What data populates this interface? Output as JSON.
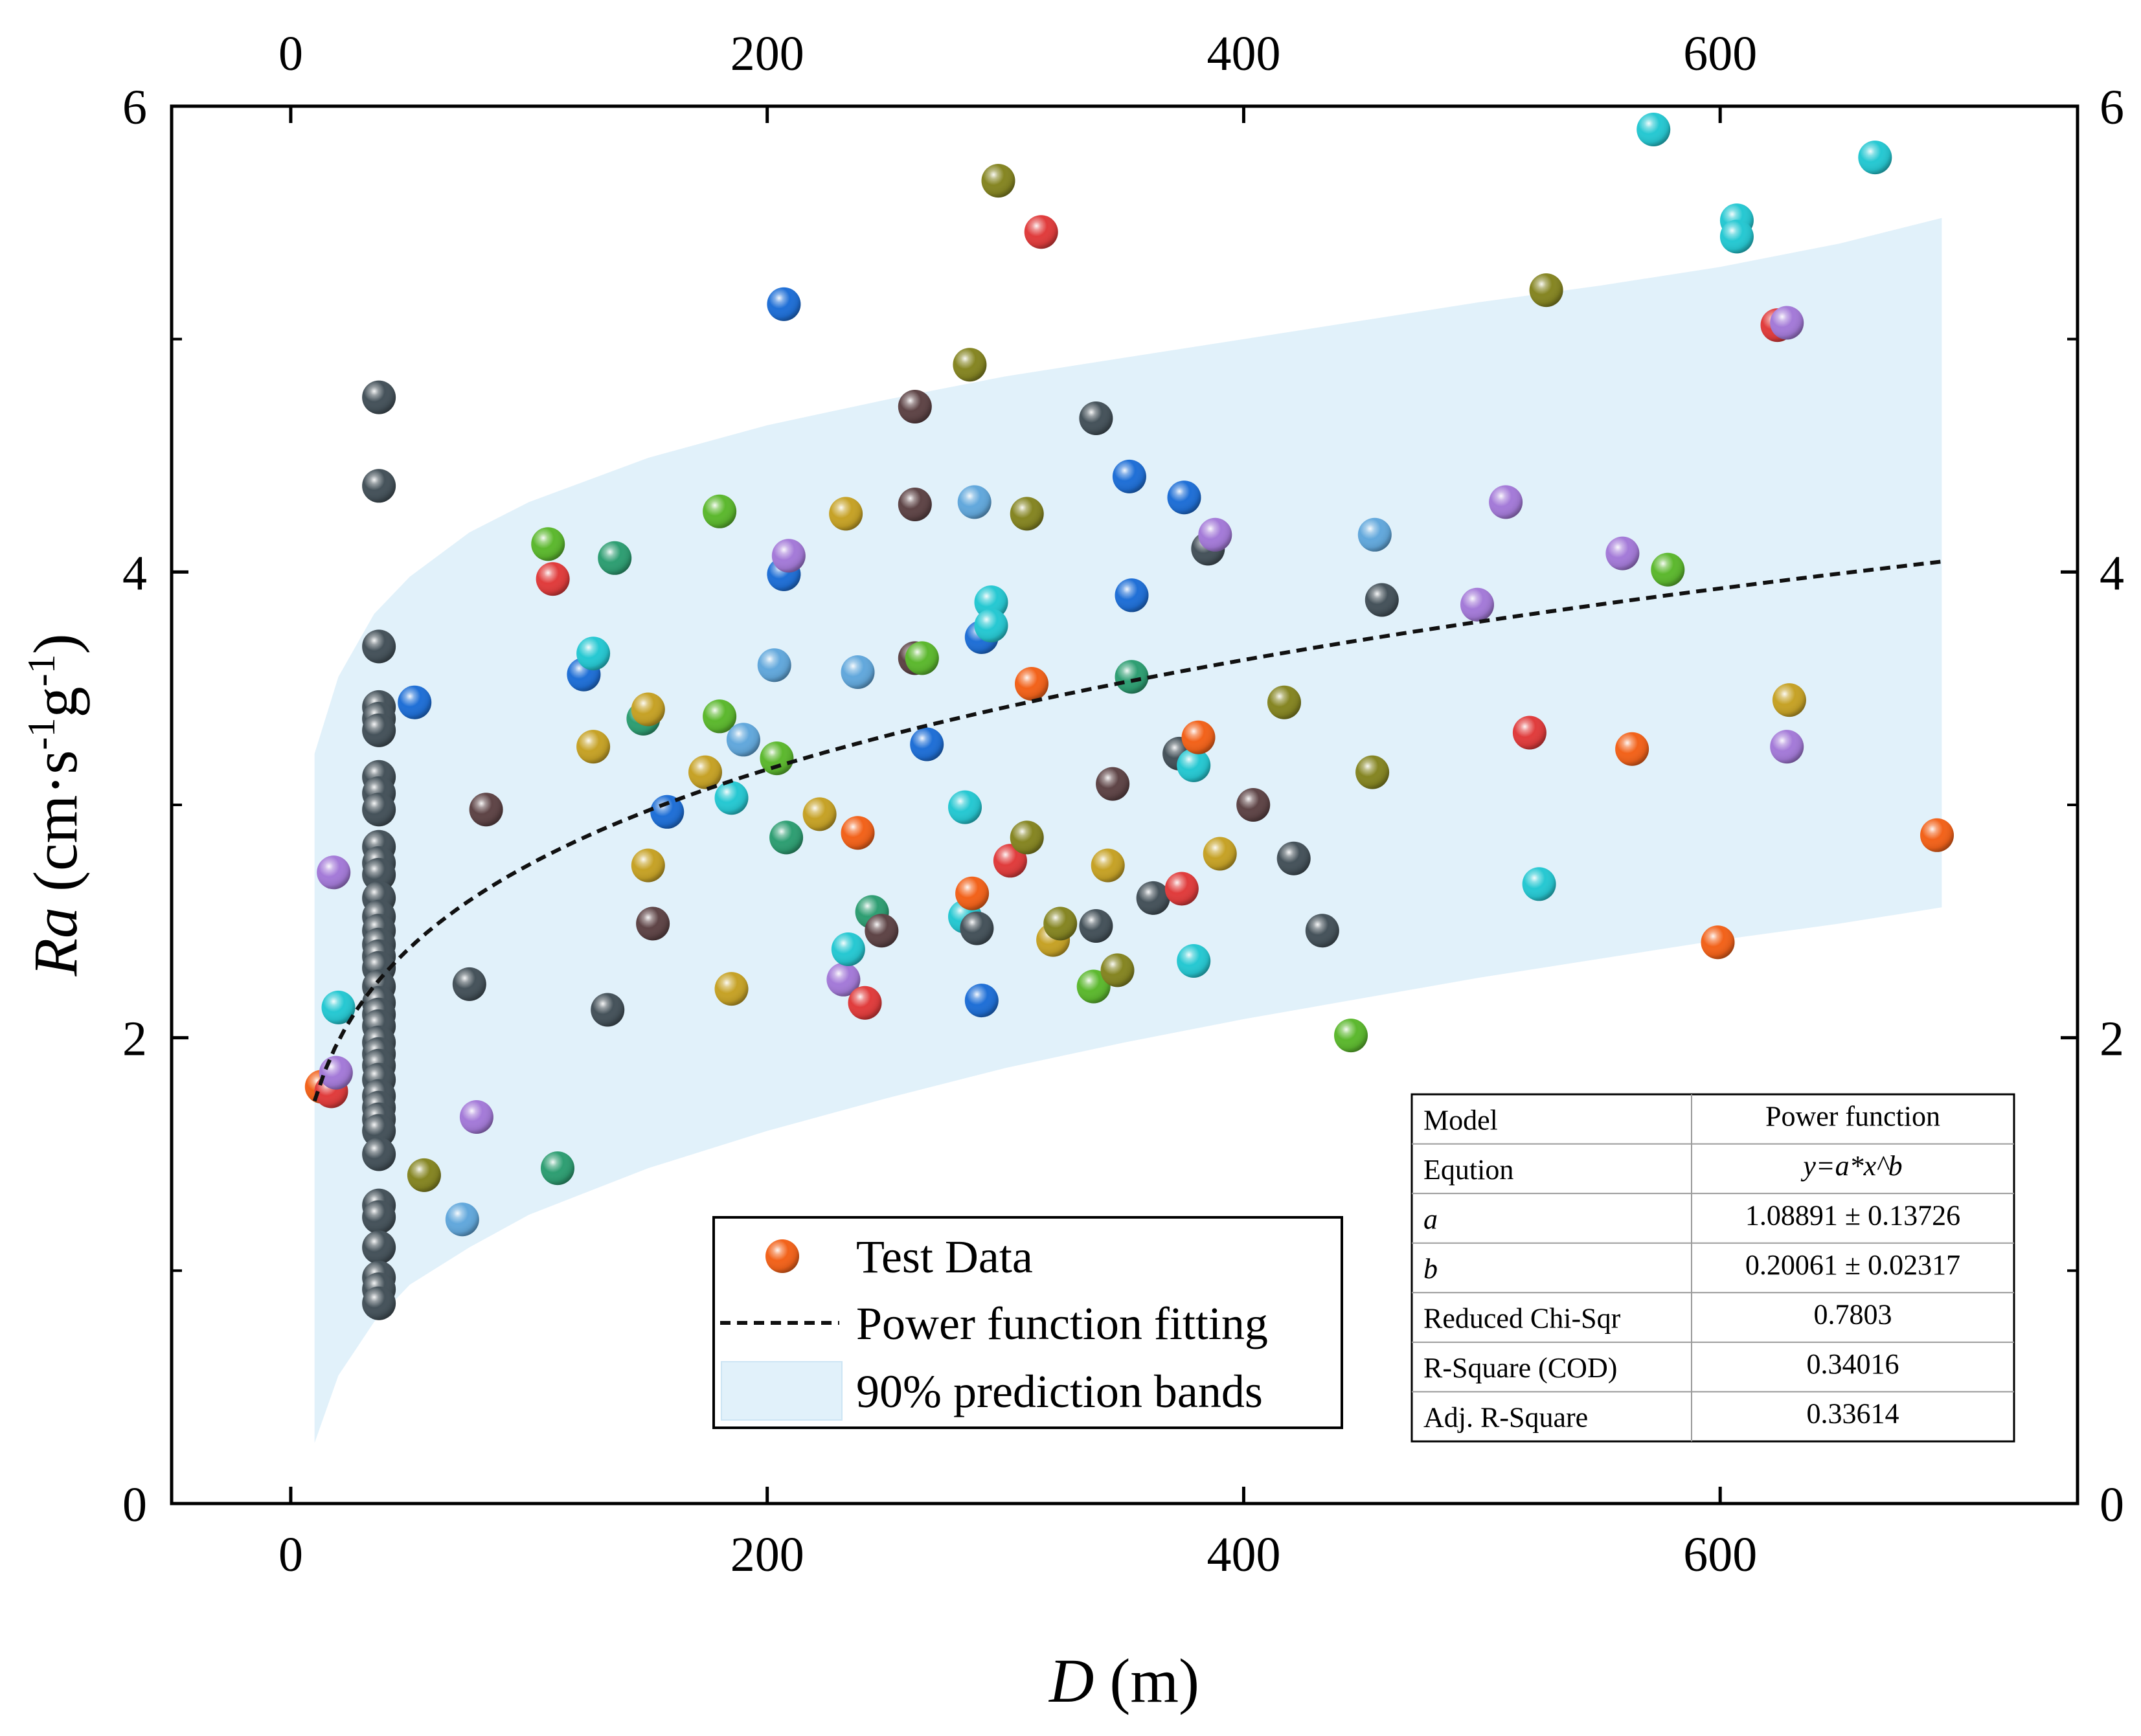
{
  "chart_data": {
    "type": "scatter",
    "xlabel": {
      "italic": "D",
      "rest": " (m)"
    },
    "ylabel": {
      "italic": "Ra",
      "rest": " (cm·s",
      "sup1": "-1",
      "mid": "g",
      "sup2": "-1",
      "end": ")"
    },
    "xlim": [
      -50,
      750
    ],
    "ylim": [
      0,
      6
    ],
    "x_ticks": [
      0,
      200,
      400,
      600
    ],
    "x_tick_labels": [
      "0",
      "200",
      "400",
      "600"
    ],
    "y_ticks": [
      0,
      2,
      4,
      6
    ],
    "y_tick_labels": [
      "0",
      "2",
      "4",
      "6"
    ],
    "top_x_ticks": [
      "0",
      "200",
      "400",
      "600"
    ],
    "right_y_ticks": [
      "0",
      "2",
      "4",
      "6"
    ],
    "fit": {
      "model": "power",
      "a": 1.08891,
      "b": 0.20061,
      "x_range": [
        10,
        693
      ],
      "line_style": "dashed",
      "color": "#111111"
    },
    "prediction_band": {
      "x": [
        10,
        20,
        35,
        50,
        75,
        100,
        150,
        200,
        250,
        300,
        350,
        400,
        450,
        500,
        550,
        600,
        650,
        693
      ],
      "upper": [
        3.22,
        3.55,
        3.82,
        3.98,
        4.17,
        4.3,
        4.49,
        4.63,
        4.74,
        4.84,
        4.92,
        5.0,
        5.08,
        5.16,
        5.23,
        5.31,
        5.41,
        5.52
      ],
      "lower": [
        0.26,
        0.55,
        0.78,
        0.94,
        1.1,
        1.24,
        1.44,
        1.6,
        1.74,
        1.87,
        1.98,
        2.08,
        2.17,
        2.26,
        2.34,
        2.42,
        2.49,
        2.56
      ],
      "color": "#e1f1fa"
    },
    "legend": {
      "position": "bottom-center",
      "entries": [
        "Test Data",
        "Power function fitting",
        "90% prediction bands"
      ]
    },
    "stats_table": {
      "position": "bottom-right",
      "rows": [
        {
          "label": "Model",
          "value": "Power function"
        },
        {
          "label": "Eqution",
          "value": "y=a*x^b"
        },
        {
          "label": "a",
          "value": "1.08891 ± 0.13726"
        },
        {
          "label": "b",
          "value": "0.20061 ± 0.02317"
        },
        {
          "label": "Reduced Chi-Sqr",
          "value": "0.7803"
        },
        {
          "label": "R-Square (COD)",
          "value": "0.34016"
        },
        {
          "label": "Adj. R-Square",
          "value": "0.33614"
        }
      ]
    },
    "colors": {
      "charcoal": "#45525a",
      "orange": "#f2621a",
      "red": "#e03c3c",
      "blue": "#1f6fd6",
      "lightblue": "#62a8dc",
      "cyan": "#26c8d2",
      "green": "#5cb82e",
      "teal": "#2e9e72",
      "olive": "#858522",
      "gold": "#c6a226",
      "brown": "#5e4446",
      "purple": "#a47ad8"
    },
    "points": [
      [
        37,
        4.75,
        "charcoal"
      ],
      [
        37,
        4.37,
        "charcoal"
      ],
      [
        37,
        3.68,
        "charcoal"
      ],
      [
        37,
        3.42,
        "charcoal"
      ],
      [
        37,
        3.37,
        "charcoal"
      ],
      [
        37,
        3.32,
        "charcoal"
      ],
      [
        37,
        3.12,
        "charcoal"
      ],
      [
        37,
        3.05,
        "charcoal"
      ],
      [
        37,
        2.98,
        "charcoal"
      ],
      [
        37,
        2.82,
        "charcoal"
      ],
      [
        37,
        2.75,
        "charcoal"
      ],
      [
        37,
        2.7,
        "charcoal"
      ],
      [
        37,
        2.6,
        "charcoal"
      ],
      [
        37,
        2.52,
        "charcoal"
      ],
      [
        37,
        2.46,
        "charcoal"
      ],
      [
        37,
        2.4,
        "charcoal"
      ],
      [
        37,
        2.35,
        "charcoal"
      ],
      [
        37,
        2.3,
        "charcoal"
      ],
      [
        37,
        2.22,
        "charcoal"
      ],
      [
        37,
        2.15,
        "charcoal"
      ],
      [
        37,
        2.1,
        "charcoal"
      ],
      [
        37,
        2.05,
        "charcoal"
      ],
      [
        37,
        1.98,
        "charcoal"
      ],
      [
        37,
        1.93,
        "charcoal"
      ],
      [
        37,
        1.88,
        "charcoal"
      ],
      [
        37,
        1.82,
        "charcoal"
      ],
      [
        37,
        1.75,
        "charcoal"
      ],
      [
        37,
        1.7,
        "charcoal"
      ],
      [
        37,
        1.65,
        "charcoal"
      ],
      [
        37,
        1.6,
        "charcoal"
      ],
      [
        37,
        1.5,
        "charcoal"
      ],
      [
        37,
        1.28,
        "charcoal"
      ],
      [
        37,
        1.23,
        "charcoal"
      ],
      [
        37,
        1.1,
        "charcoal"
      ],
      [
        37,
        0.97,
        "charcoal"
      ],
      [
        37,
        0.92,
        "charcoal"
      ],
      [
        37,
        0.86,
        "charcoal"
      ],
      [
        13,
        1.79,
        "orange"
      ],
      [
        17,
        1.77,
        "red"
      ],
      [
        19,
        1.85,
        "purple"
      ],
      [
        18,
        2.71,
        "purple"
      ],
      [
        20,
        2.13,
        "cyan"
      ],
      [
        52,
        3.44,
        "blue"
      ],
      [
        56,
        1.41,
        "olive"
      ],
      [
        72,
        1.22,
        "lightblue"
      ],
      [
        75,
        2.23,
        "charcoal"
      ],
      [
        78,
        1.66,
        "purple"
      ],
      [
        82,
        2.98,
        "brown"
      ],
      [
        108,
        4.12,
        "green"
      ],
      [
        110,
        3.97,
        "red"
      ],
      [
        112,
        1.44,
        "teal"
      ],
      [
        123,
        3.56,
        "blue"
      ],
      [
        127,
        3.65,
        "cyan"
      ],
      [
        127,
        3.25,
        "gold"
      ],
      [
        136,
        4.06,
        "teal"
      ],
      [
        133,
        2.12,
        "charcoal"
      ],
      [
        148,
        3.37,
        "teal"
      ],
      [
        150,
        3.41,
        "gold"
      ],
      [
        150,
        2.74,
        "gold"
      ],
      [
        152,
        2.49,
        "brown"
      ],
      [
        158,
        2.97,
        "blue"
      ],
      [
        174,
        3.14,
        "gold"
      ],
      [
        180,
        4.26,
        "green"
      ],
      [
        180,
        3.38,
        "green"
      ],
      [
        185,
        3.03,
        "cyan"
      ],
      [
        185,
        2.21,
        "gold"
      ],
      [
        190,
        3.28,
        "lightblue"
      ],
      [
        203,
        3.6,
        "lightblue"
      ],
      [
        204,
        3.2,
        "green"
      ],
      [
        207,
        5.15,
        "blue"
      ],
      [
        207,
        3.99,
        "blue"
      ],
      [
        209,
        4.07,
        "purple"
      ],
      [
        208,
        2.86,
        "teal"
      ],
      [
        222,
        2.96,
        "gold"
      ],
      [
        233,
        4.25,
        "gold"
      ],
      [
        232,
        2.25,
        "purple"
      ],
      [
        234,
        2.38,
        "cyan"
      ],
      [
        238,
        3.57,
        "lightblue"
      ],
      [
        238,
        2.88,
        "orange"
      ],
      [
        241,
        2.15,
        "red"
      ],
      [
        244,
        2.54,
        "teal"
      ],
      [
        248,
        2.46,
        "brown"
      ],
      [
        262,
        4.71,
        "brown"
      ],
      [
        262,
        4.29,
        "brown"
      ],
      [
        262,
        3.63,
        "brown"
      ],
      [
        265,
        3.63,
        "green"
      ],
      [
        267,
        3.26,
        "blue"
      ],
      [
        283,
        2.99,
        "cyan"
      ],
      [
        283,
        2.52,
        "cyan"
      ],
      [
        285,
        4.89,
        "olive"
      ],
      [
        287,
        4.3,
        "lightblue"
      ],
      [
        286,
        2.62,
        "orange"
      ],
      [
        288,
        2.47,
        "charcoal"
      ],
      [
        290,
        3.72,
        "blue"
      ],
      [
        290,
        2.16,
        "blue"
      ],
      [
        294,
        3.87,
        "cyan"
      ],
      [
        294,
        3.77,
        "cyan"
      ],
      [
        297,
        5.68,
        "olive"
      ],
      [
        302,
        2.76,
        "red"
      ],
      [
        309,
        4.25,
        "olive"
      ],
      [
        309,
        2.86,
        "olive"
      ],
      [
        311,
        3.52,
        "orange"
      ],
      [
        315,
        5.46,
        "red"
      ],
      [
        320,
        2.42,
        "gold"
      ],
      [
        323,
        2.49,
        "olive"
      ],
      [
        338,
        4.66,
        "charcoal"
      ],
      [
        338,
        2.48,
        "charcoal"
      ],
      [
        337,
        2.22,
        "green"
      ],
      [
        343,
        2.74,
        "gold"
      ],
      [
        345,
        3.09,
        "brown"
      ],
      [
        347,
        2.29,
        "olive"
      ],
      [
        352,
        4.41,
        "blue"
      ],
      [
        353,
        3.9,
        "blue"
      ],
      [
        353,
        3.55,
        "teal"
      ],
      [
        362,
        2.6,
        "charcoal"
      ],
      [
        373,
        3.22,
        "charcoal"
      ],
      [
        374,
        2.64,
        "red"
      ],
      [
        375,
        4.32,
        "blue"
      ],
      [
        379,
        3.17,
        "cyan"
      ],
      [
        379,
        2.33,
        "cyan"
      ],
      [
        381,
        3.29,
        "orange"
      ],
      [
        385,
        4.1,
        "charcoal"
      ],
      [
        388,
        4.16,
        "purple"
      ],
      [
        390,
        2.79,
        "gold"
      ],
      [
        404,
        3.0,
        "brown"
      ],
      [
        417,
        3.44,
        "olive"
      ],
      [
        421,
        2.77,
        "charcoal"
      ],
      [
        433,
        2.46,
        "charcoal"
      ],
      [
        445,
        2.01,
        "green"
      ],
      [
        455,
        4.16,
        "lightblue"
      ],
      [
        454,
        3.14,
        "olive"
      ],
      [
        458,
        3.88,
        "charcoal"
      ],
      [
        498,
        3.86,
        "purple"
      ],
      [
        510,
        4.3,
        "purple"
      ],
      [
        520,
        3.31,
        "red"
      ],
      [
        524,
        2.66,
        "cyan"
      ],
      [
        527,
        5.21,
        "olive"
      ],
      [
        559,
        4.08,
        "purple"
      ],
      [
        563,
        3.24,
        "orange"
      ],
      [
        572,
        5.9,
        "cyan"
      ],
      [
        578,
        4.01,
        "green"
      ],
      [
        599,
        2.41,
        "orange"
      ],
      [
        607,
        5.51,
        "cyan"
      ],
      [
        607,
        5.44,
        "cyan"
      ],
      [
        624,
        5.06,
        "red"
      ],
      [
        628,
        5.07,
        "purple"
      ],
      [
        628,
        3.25,
        "purple"
      ],
      [
        629,
        3.45,
        "gold"
      ],
      [
        665,
        5.78,
        "cyan"
      ],
      [
        691,
        2.87,
        "orange"
      ]
    ]
  }
}
